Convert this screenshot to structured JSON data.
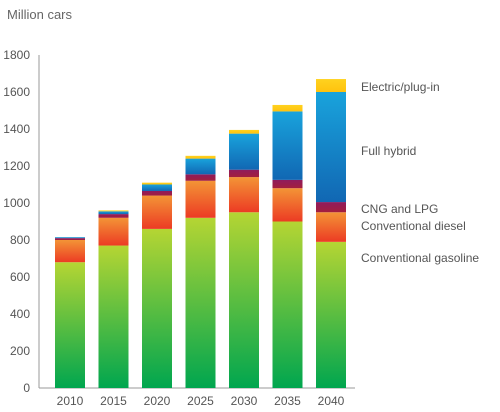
{
  "chart_data": {
    "type": "bar",
    "stacked": true,
    "title": "",
    "unit_label": "Million cars",
    "xlabel": "",
    "ylabel": "",
    "categories": [
      "2010",
      "2015",
      "2020",
      "2025",
      "2030",
      "2035",
      "2040"
    ],
    "ylim": [
      0,
      1800
    ],
    "yticks": [
      0,
      200,
      400,
      600,
      800,
      1000,
      1200,
      1400,
      1600,
      1800
    ],
    "grid": false,
    "legend_position": "right",
    "series": [
      {
        "name": "Conventional gasoline",
        "values": [
          680,
          770,
          860,
          920,
          950,
          900,
          790
        ]
      },
      {
        "name": "Conventional diesel",
        "values": [
          120,
          150,
          180,
          200,
          190,
          180,
          160
        ]
      },
      {
        "name": "CNG and LPG",
        "values": [
          10,
          20,
          25,
          35,
          40,
          45,
          55
        ]
      },
      {
        "name": "Full hybrid",
        "values": [
          5,
          15,
          35,
          85,
          195,
          370,
          595
        ]
      },
      {
        "name": "Electric/plug-in",
        "values": [
          0,
          5,
          10,
          15,
          20,
          35,
          70
        ]
      }
    ]
  }
}
